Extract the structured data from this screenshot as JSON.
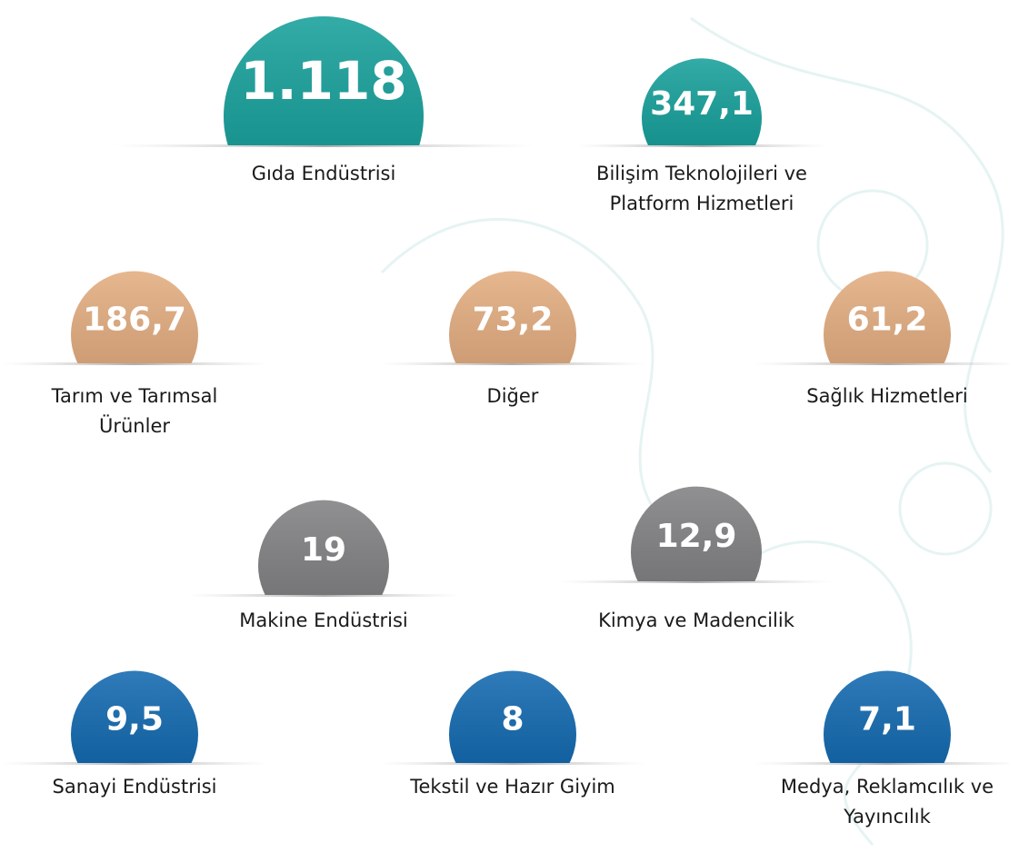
{
  "items": [
    {
      "value": "1.118",
      "label": [
        "Gıda Endüstrisi"
      ],
      "color": "#0f9c97"
    },
    {
      "value": "347,1",
      "label": [
        "Bilişim Teknolojileri ve",
        "Platform Hizmetleri"
      ],
      "color": "#0f9c97"
    },
    {
      "value": "186,7",
      "label": [
        "Tarım ve Tarımsal",
        "Ürünler"
      ],
      "color": "#e2aa7c"
    },
    {
      "value": "73,2",
      "label": [
        "Diğer"
      ],
      "color": "#e2aa7c"
    },
    {
      "value": "61,2",
      "label": [
        "Sağlık Hizmetleri"
      ],
      "color": "#e2aa7c"
    },
    {
      "value": "19",
      "label": [
        "Makine Endüstrisi"
      ],
      "color": "#7d7d7f"
    },
    {
      "value": "12,9",
      "label": [
        "Kimya ve Madencilik"
      ],
      "color": "#7d7d7f"
    },
    {
      "value": "9,5",
      "label": [
        "Sanayi Endüstrisi"
      ],
      "color": "#0b64ad"
    },
    {
      "value": "8",
      "label": [
        "Tekstil ve Hazır Giyim"
      ],
      "color": "#0b64ad"
    },
    {
      "value": "7,1",
      "label": [
        "Medya, Reklamcılık ve",
        "Yayıncılık"
      ],
      "color": "#0b64ad"
    }
  ]
}
